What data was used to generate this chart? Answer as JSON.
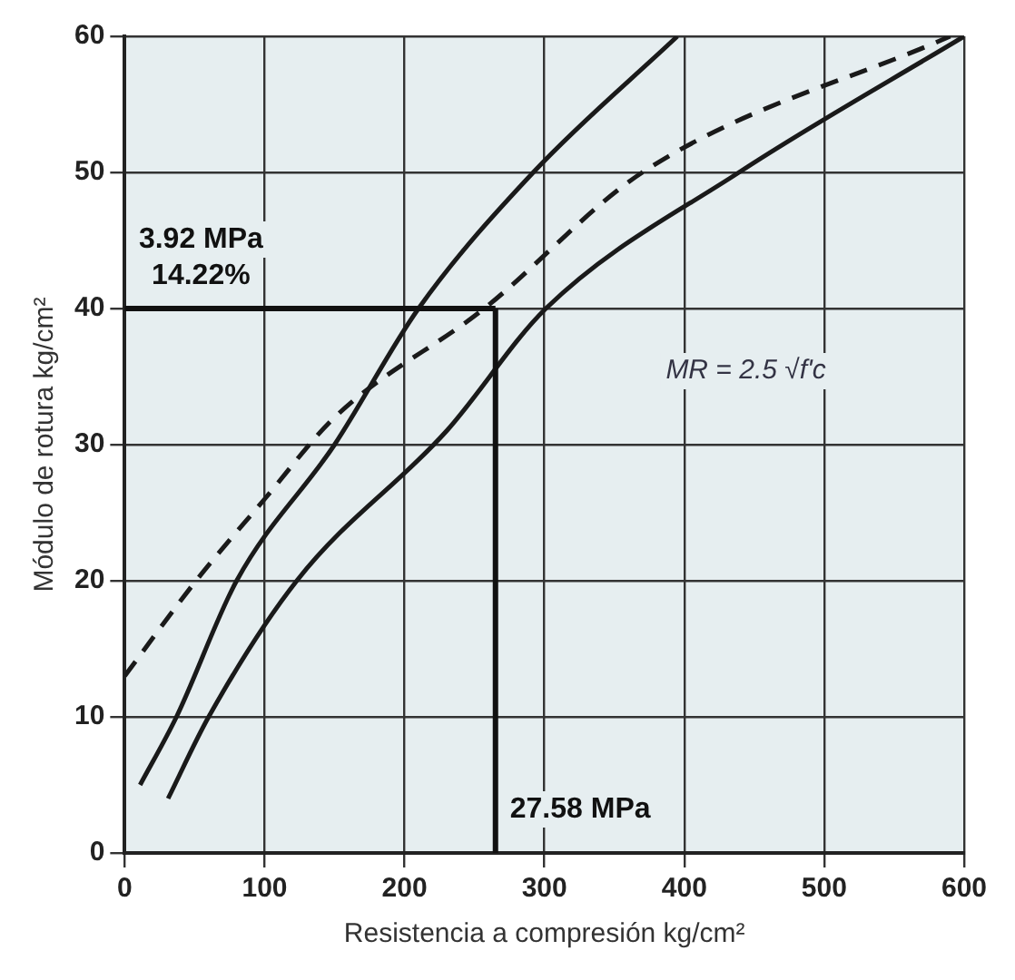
{
  "chart_data": {
    "type": "line",
    "xlabel": "Resistencia a compresión kg/cm²",
    "ylabel": "Módulo de rotura kg/cm²",
    "xlim": [
      0,
      600
    ],
    "ylim": [
      0,
      60
    ],
    "xticks": [
      0,
      100,
      200,
      300,
      400,
      500,
      600
    ],
    "yticks": [
      0,
      10,
      20,
      30,
      40,
      50,
      60
    ],
    "grid": true,
    "legend": false,
    "marker": "none",
    "series": [
      {
        "color": "#1a1a1a",
        "line_style": "solid",
        "x": [
          11,
          37,
          80,
          150,
          210,
          292,
          395
        ],
        "values": [
          5,
          10,
          20,
          30,
          40,
          50,
          60
        ]
      },
      {
        "color": "#1a1a1a",
        "line_style": "solid",
        "x": [
          31,
          60,
          123,
          230,
          301,
          439,
          600
        ],
        "values": [
          4,
          10,
          20,
          31,
          40,
          50,
          60
        ]
      },
      {
        "color": "#1a1a1a",
        "line_style": "dashed",
        "x": [
          0,
          51,
          100,
          150,
          257,
          370,
          590
        ],
        "values": [
          13,
          20,
          26,
          32,
          40,
          50,
          60
        ]
      }
    ],
    "ref_lines": [
      {
        "axis": "y",
        "value": 40,
        "color": "#111111",
        "label": "3.92 MPa"
      },
      {
        "axis": "x",
        "value": 265,
        "color": "#111111",
        "label": "27.58 MPa"
      }
    ],
    "annotations": [
      "14.22%",
      "MR = 2.5 √f'c"
    ]
  }
}
